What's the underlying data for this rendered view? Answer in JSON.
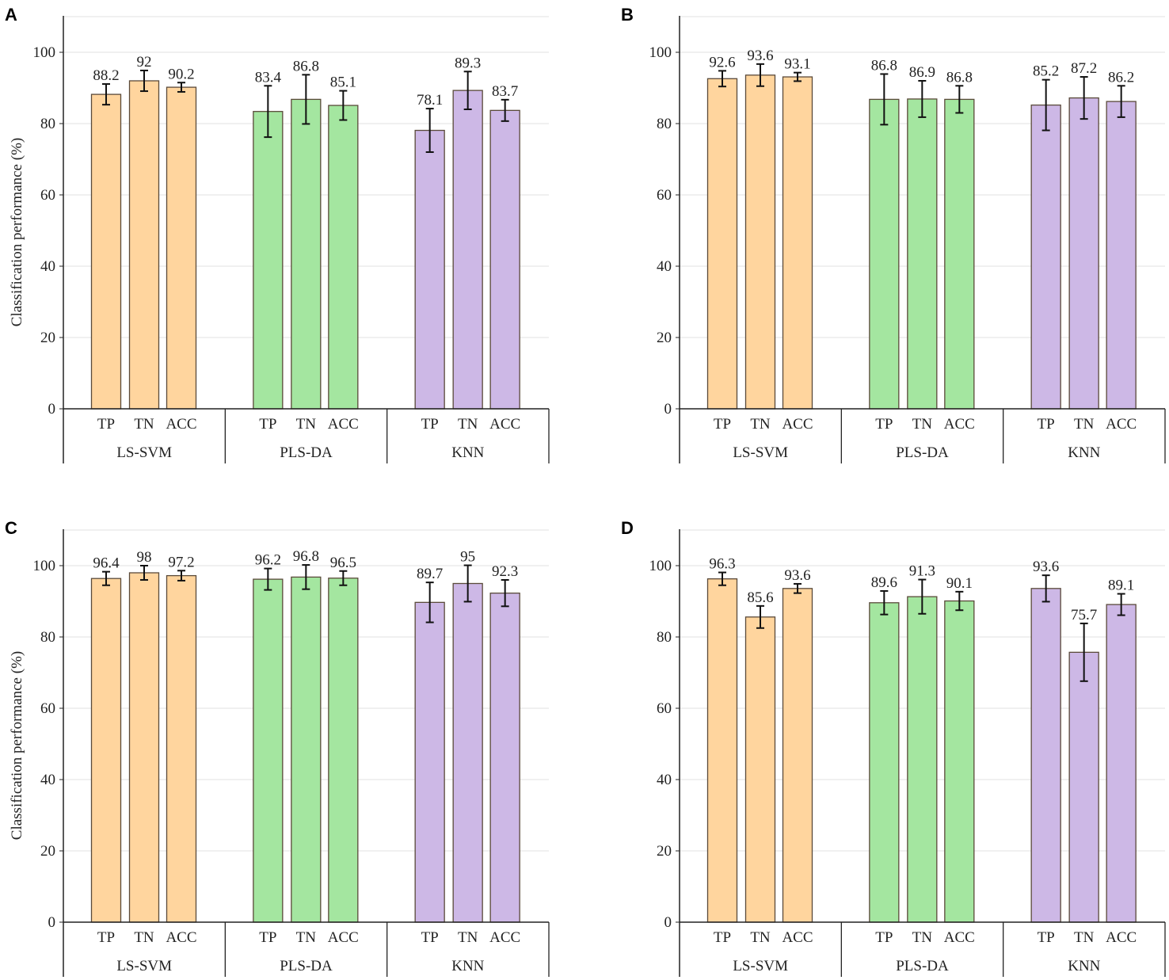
{
  "colors": {
    "LS-SVM": "#FFD59E",
    "PLS-DA": "#A4E6A0",
    "KNN": "#CDB8E6",
    "edge": "#5a4a3a",
    "grid": "#e2e2e2"
  },
  "chart_data": [
    {
      "type": "bar",
      "panel": "A",
      "ylabel": "Classification performance (%)",
      "ylim": [
        0,
        110
      ],
      "yticks": [
        0,
        20,
        40,
        60,
        80,
        100
      ],
      "grid": true,
      "groups": [
        "LS-SVM",
        "PLS-DA",
        "KNN"
      ],
      "categories": [
        "TP",
        "TN",
        "ACC"
      ],
      "values": [
        [
          88.2,
          92,
          90.2
        ],
        [
          83.4,
          86.8,
          85.1
        ],
        [
          78.1,
          89.3,
          83.7
        ]
      ],
      "errors": [
        [
          2.9,
          2.9,
          1.3
        ],
        [
          7.2,
          6.9,
          4.1
        ],
        [
          6.1,
          5.3,
          3.0
        ]
      ]
    },
    {
      "type": "bar",
      "panel": "B",
      "ylabel": "",
      "ylim": [
        0,
        110
      ],
      "yticks": [
        0,
        20,
        40,
        60,
        80,
        100
      ],
      "grid": true,
      "groups": [
        "LS-SVM",
        "PLS-DA",
        "KNN"
      ],
      "categories": [
        "TP",
        "TN",
        "ACC"
      ],
      "values": [
        [
          92.6,
          93.6,
          93.1
        ],
        [
          86.8,
          86.9,
          86.8
        ],
        [
          85.2,
          87.2,
          86.2
        ]
      ],
      "errors": [
        [
          2.2,
          3.1,
          1.2
        ],
        [
          7.1,
          5.1,
          3.8
        ],
        [
          7.1,
          5.9,
          4.4
        ]
      ]
    },
    {
      "type": "bar",
      "panel": "C",
      "ylabel": "Classification performance (%)",
      "ylim": [
        0,
        110
      ],
      "yticks": [
        0,
        20,
        40,
        60,
        80,
        100
      ],
      "grid": true,
      "groups": [
        "LS-SVM",
        "PLS-DA",
        "KNN"
      ],
      "categories": [
        "TP",
        "TN",
        "ACC"
      ],
      "values": [
        [
          96.4,
          98,
          97.2
        ],
        [
          96.2,
          96.8,
          96.5
        ],
        [
          89.7,
          95,
          92.3
        ]
      ],
      "errors": [
        [
          1.9,
          2.0,
          1.4
        ],
        [
          3.0,
          3.4,
          2.0
        ],
        [
          5.6,
          5.1,
          3.7
        ]
      ]
    },
    {
      "type": "bar",
      "panel": "D",
      "ylabel": "",
      "ylim": [
        0,
        110
      ],
      "yticks": [
        0,
        20,
        40,
        60,
        80,
        100
      ],
      "grid": true,
      "groups": [
        "LS-SVM",
        "PLS-DA",
        "KNN"
      ],
      "categories": [
        "TP",
        "TN",
        "ACC"
      ],
      "values": [
        [
          96.3,
          85.6,
          93.6
        ],
        [
          89.6,
          91.3,
          90.1
        ],
        [
          93.6,
          75.7,
          89.1
        ]
      ],
      "errors": [
        [
          1.8,
          3.1,
          1.3
        ],
        [
          3.3,
          4.8,
          2.6
        ],
        [
          3.7,
          8.1,
          3.0
        ]
      ]
    }
  ]
}
